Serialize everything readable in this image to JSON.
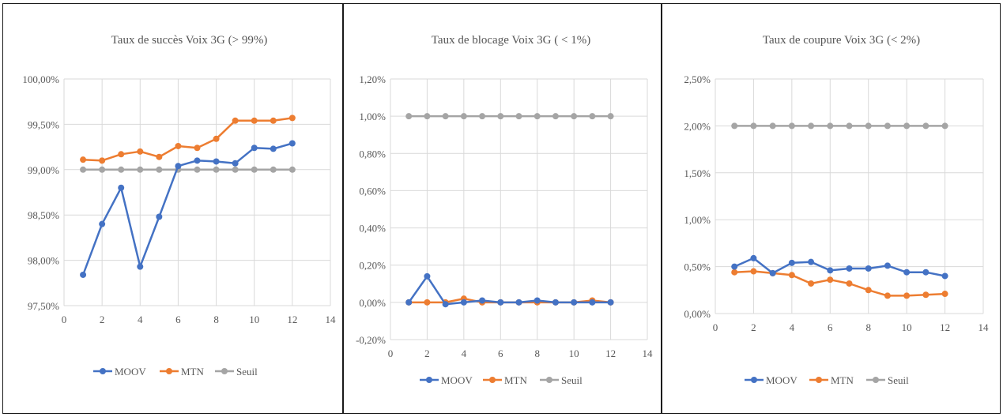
{
  "chart_data": [
    {
      "type": "line",
      "title": "Taux de succès Voix 3G (> 99%)",
      "xlabel": "",
      "ylabel": "",
      "xlim": [
        0,
        14
      ],
      "ylim": [
        97.5,
        100
      ],
      "x_ticks": [
        "0",
        "2",
        "4",
        "6",
        "8",
        "10",
        "12",
        "14"
      ],
      "y_ticks": [
        "97,50%",
        "98,00%",
        "98,50%",
        "99,00%",
        "99,50%",
        "100,00%"
      ],
      "grid": true,
      "legend_position": "bottom",
      "x": [
        1,
        2,
        3,
        4,
        5,
        6,
        7,
        8,
        9,
        10,
        11,
        12
      ],
      "series": [
        {
          "name": "MOOV",
          "color": "#4472C4",
          "values": [
            97.84,
            98.4,
            98.8,
            97.93,
            98.48,
            99.04,
            99.1,
            99.09,
            99.07,
            99.24,
            99.23,
            99.29
          ]
        },
        {
          "name": "MTN",
          "color": "#ED7D31",
          "values": [
            99.11,
            99.1,
            99.17,
            99.2,
            99.14,
            99.26,
            99.24,
            99.34,
            99.54,
            99.54,
            99.54,
            99.57
          ]
        },
        {
          "name": "Seuil",
          "color": "#A5A5A5",
          "values": [
            99,
            99,
            99,
            99,
            99,
            99,
            99,
            99,
            99,
            99,
            99,
            99
          ]
        }
      ]
    },
    {
      "type": "line",
      "title": "Taux de blocage Voix 3G ( < 1%)",
      "xlabel": "",
      "ylabel": "",
      "xlim": [
        0,
        14
      ],
      "ylim": [
        -0.2,
        1.2
      ],
      "x_ticks": [
        "0",
        "2",
        "4",
        "6",
        "8",
        "10",
        "12",
        "14"
      ],
      "y_ticks": [
        "-0,20%",
        "0,00%",
        "0,20%",
        "0,40%",
        "0,60%",
        "0,80%",
        "1,00%",
        "1,20%"
      ],
      "grid": true,
      "legend_position": "bottom",
      "x": [
        1,
        2,
        3,
        4,
        5,
        6,
        7,
        8,
        9,
        10,
        11,
        12
      ],
      "series": [
        {
          "name": "MOOV",
          "color": "#4472C4",
          "values": [
            0.0,
            0.14,
            -0.01,
            0.0,
            0.01,
            0.0,
            0.0,
            0.01,
            0.0,
            0.0,
            0.0,
            0.0
          ]
        },
        {
          "name": "MTN",
          "color": "#ED7D31",
          "values": [
            0.0,
            0.0,
            0.0,
            0.02,
            0.0,
            0.0,
            0.0,
            0.0,
            0.0,
            0.0,
            0.01,
            0.0
          ]
        },
        {
          "name": "Seuil",
          "color": "#A5A5A5",
          "values": [
            1,
            1,
            1,
            1,
            1,
            1,
            1,
            1,
            1,
            1,
            1,
            1
          ]
        }
      ]
    },
    {
      "type": "line",
      "title": "Taux de coupure Voix 3G (< 2%)",
      "xlabel": "",
      "ylabel": "",
      "xlim": [
        0,
        14
      ],
      "ylim": [
        0,
        2.5
      ],
      "x_ticks": [
        "0",
        "2",
        "4",
        "6",
        "8",
        "10",
        "12",
        "14"
      ],
      "y_ticks": [
        "0,00%",
        "0,50%",
        "1,00%",
        "1,50%",
        "2,00%",
        "2,50%"
      ],
      "grid": true,
      "legend_position": "bottom",
      "x": [
        1,
        2,
        3,
        4,
        5,
        6,
        7,
        8,
        9,
        10,
        11,
        12
      ],
      "series": [
        {
          "name": "MOOV",
          "color": "#4472C4",
          "values": [
            0.5,
            0.59,
            0.43,
            0.54,
            0.55,
            0.46,
            0.48,
            0.48,
            0.51,
            0.44,
            0.44,
            0.4
          ]
        },
        {
          "name": "MTN",
          "color": "#ED7D31",
          "values": [
            0.44,
            0.45,
            0.43,
            0.41,
            0.32,
            0.36,
            0.32,
            0.25,
            0.19,
            0.19,
            0.2,
            0.21
          ]
        },
        {
          "name": "Seuil",
          "color": "#A5A5A5",
          "values": [
            2,
            2,
            2,
            2,
            2,
            2,
            2,
            2,
            2,
            2,
            2,
            2
          ]
        }
      ]
    }
  ]
}
